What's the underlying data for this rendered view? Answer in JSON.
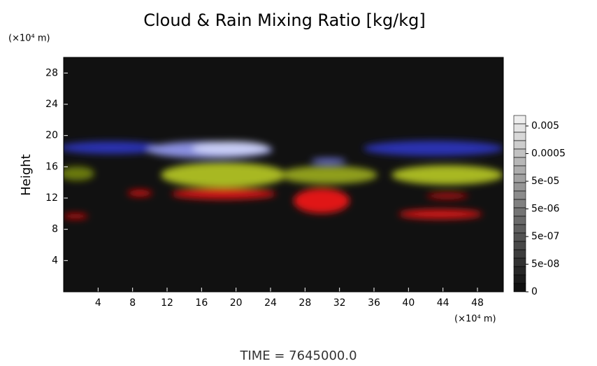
{
  "chart_data": {
    "type": "heatmap",
    "title": "Cloud & Rain Mixing Ratio [kg/kg]",
    "ylabel": "Height",
    "y_unit": "(×10⁴ m)",
    "x_unit": "(×10⁴ m)",
    "footer": "TIME = 7645000.0",
    "xlim": [
      0,
      51
    ],
    "xticks": [
      4,
      8,
      12,
      16,
      20,
      24,
      28,
      32,
      36,
      40,
      44,
      48
    ],
    "ylim": [
      0,
      30
    ],
    "yticks": [
      4,
      8,
      12,
      16,
      20,
      24,
      28
    ],
    "colorbar_ticks": [
      0.005,
      0.0005,
      {
        "value": 5e-05,
        "label": "5e-05"
      },
      {
        "value": 5e-06,
        "label": "5e-06"
      },
      {
        "value": 5e-07,
        "label": "5e-07"
      },
      {
        "value": 5e-08,
        "label": "5e-08"
      },
      0
    ]
  }
}
